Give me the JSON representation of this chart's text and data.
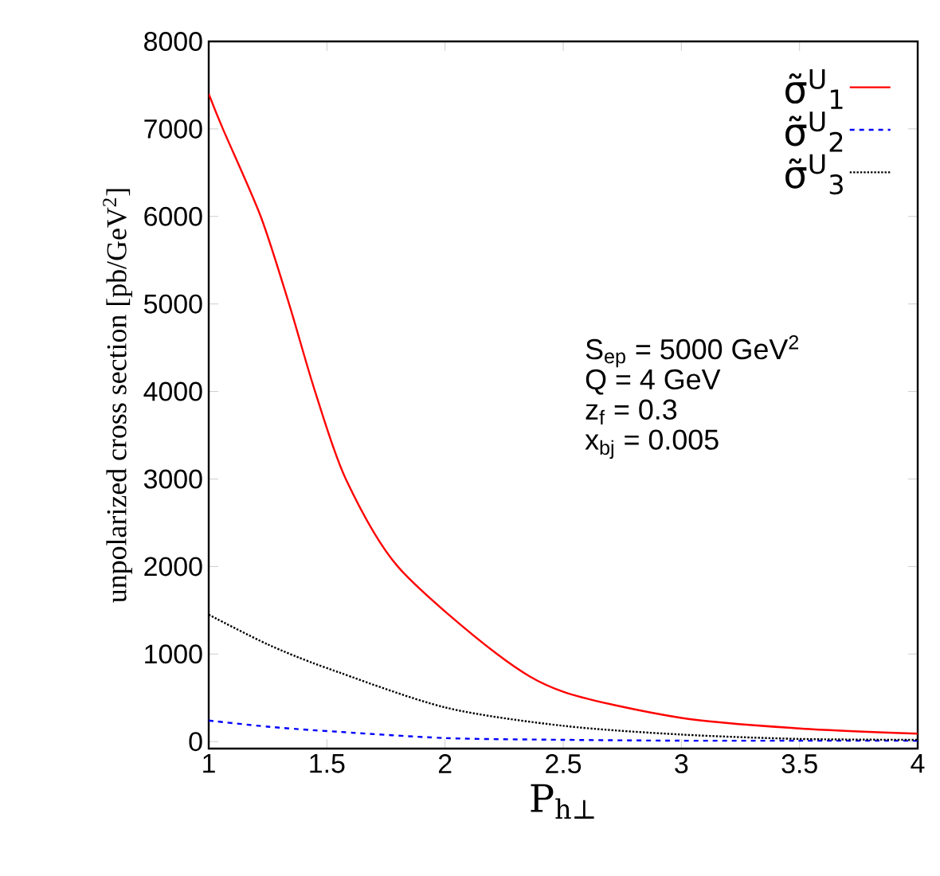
{
  "chart_data": {
    "type": "line",
    "xlabel": "P$_{h⊥}$",
    "ylabel": "unpolarized cross section [pb/GeV$^{2}$]",
    "xlim": [
      1,
      4
    ],
    "xticks": [
      1,
      1.5,
      2,
      2.5,
      3,
      3.5,
      4
    ],
    "ylim": [
      -80,
      8000
    ],
    "yticks": [
      0,
      1000,
      2000,
      3000,
      4000,
      5000,
      6000,
      7000,
      8000
    ],
    "legend": "top right",
    "annotations": [
      "S$_{ep}$ = 5000 GeV$^{2}$",
      "Q = 4 GeV",
      "z$_{f}$ = 0.3",
      "x$_{bj}$ = 0.005"
    ],
    "series": [
      {
        "name": "σ̃$^{U}$$_{1}$",
        "color": "#ff0000",
        "line_style": "solid",
        "x": [
          1,
          1.06,
          1.22,
          1.34,
          1.45,
          1.58,
          1.8,
          2.22,
          2.5,
          3,
          3.5,
          4
        ],
        "values": [
          7400,
          7000,
          6000,
          5000,
          4000,
          3000,
          2000,
          1000,
          570,
          270,
          150,
          90
        ]
      },
      {
        "name": "σ̃$^{U}$$_{2}$",
        "color": "#0000ff",
        "line_style": "dashed",
        "x": [
          1,
          1.25,
          1.5,
          2,
          2.5,
          3,
          3.5,
          4
        ],
        "values": [
          240,
          170,
          120,
          40,
          20,
          10,
          10,
          10
        ]
      },
      {
        "name": "σ̃$^{U}$$_{3}$",
        "color": "#000000",
        "line_style": "dotted",
        "x": [
          1,
          1.25,
          1.5,
          2,
          2.5,
          3,
          3.5,
          4
        ],
        "values": [
          1450,
          1110,
          840,
          390,
          180,
          80,
          30,
          20
        ]
      }
    ]
  }
}
